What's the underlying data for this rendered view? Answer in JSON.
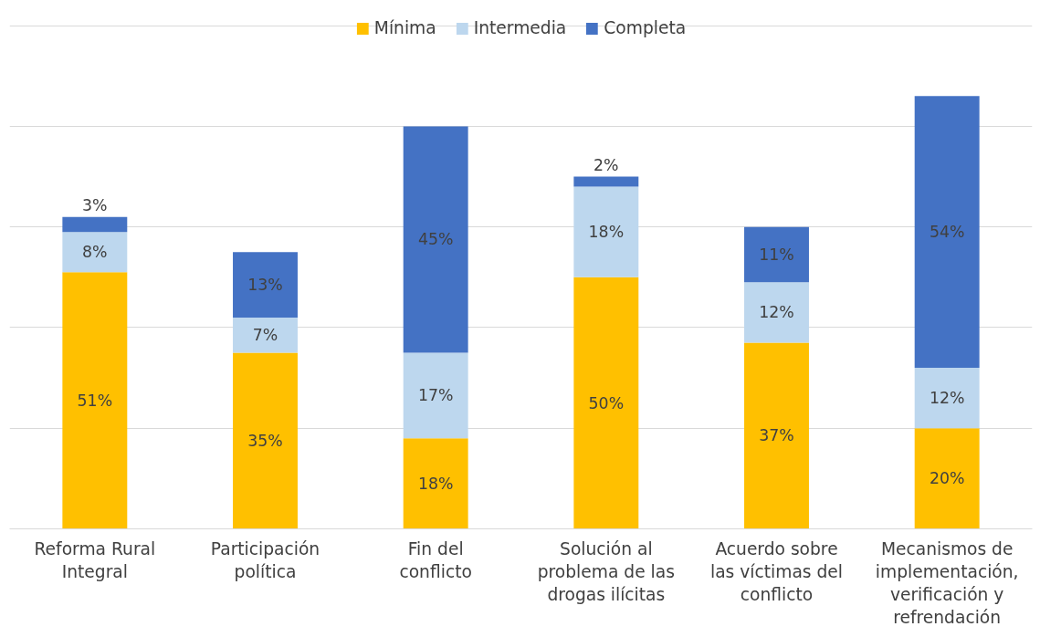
{
  "chart_data": {
    "type": "bar",
    "stacked": true,
    "grid": "y",
    "legend": "top",
    "tick_labels": "x",
    "categories": [
      "Reforma Rural Integral",
      "Participación política",
      "Fin del conflicto",
      "Solución al problema de las drogas ilícitas",
      "Acuerdo sobre las víctimas del conflicto",
      "Mecanismos de implementación, verificación y refrendación"
    ],
    "series": [
      {
        "name": "Mínima",
        "color": "#ffc000",
        "values": [
          51,
          35,
          18,
          50,
          37,
          20
        ],
        "value_labels": [
          "51%",
          "35%",
          "18%",
          "50%",
          "37%",
          "20%"
        ]
      },
      {
        "name": "Intermedia",
        "color": "#bdd7ee",
        "values": [
          8,
          7,
          17,
          18,
          12,
          12
        ],
        "value_labels": [
          "8%",
          "7%",
          "17%",
          "18%",
          "12%",
          "12%"
        ]
      },
      {
        "name": "Completa",
        "color": "#4472c4",
        "values": [
          3,
          13,
          45,
          2,
          11,
          54
        ],
        "value_labels": [
          "3%",
          "13%",
          "45%",
          "2%",
          "11%",
          "54%"
        ]
      }
    ]
  }
}
